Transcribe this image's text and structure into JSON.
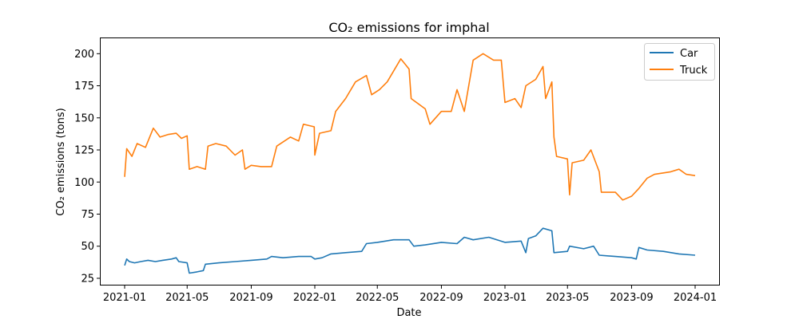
{
  "chart_data": {
    "type": "line",
    "title": "CO₂ emissions for imphal",
    "xlabel": "Date",
    "ylabel": "CO₂ emissions (tons)",
    "xlim": [
      "2020-11-16",
      "2024-02-16"
    ],
    "ylim": [
      20,
      212
    ],
    "x_ticks": [
      "2021-01",
      "2021-05",
      "2021-09",
      "2022-01",
      "2022-05",
      "2022-09",
      "2023-01",
      "2023-05",
      "2023-09",
      "2024-01"
    ],
    "y_ticks": [
      25,
      50,
      75,
      100,
      125,
      150,
      175,
      200
    ],
    "grid": false,
    "legend": {
      "placement": "top-right",
      "entries": [
        "Car",
        "Truck"
      ]
    },
    "series": [
      {
        "name": "Car",
        "color": "#1f77b4",
        "points": [
          [
            "2021-01-01",
            35
          ],
          [
            "2021-01-05",
            40
          ],
          [
            "2021-01-10",
            38
          ],
          [
            "2021-01-20",
            37
          ],
          [
            "2021-02-01",
            38
          ],
          [
            "2021-02-15",
            39
          ],
          [
            "2021-03-01",
            38
          ],
          [
            "2021-03-15",
            39
          ],
          [
            "2021-04-01",
            40
          ],
          [
            "2021-04-10",
            41
          ],
          [
            "2021-04-15",
            38
          ],
          [
            "2021-05-01",
            37
          ],
          [
            "2021-05-05",
            29
          ],
          [
            "2021-05-20",
            30
          ],
          [
            "2021-06-01",
            31
          ],
          [
            "2021-06-05",
            36
          ],
          [
            "2021-07-01",
            37
          ],
          [
            "2021-08-01",
            38
          ],
          [
            "2021-09-01",
            39
          ],
          [
            "2021-10-01",
            40
          ],
          [
            "2021-10-10",
            42
          ],
          [
            "2021-11-01",
            41
          ],
          [
            "2021-12-01",
            42
          ],
          [
            "2021-12-25",
            42
          ],
          [
            "2022-01-01",
            40
          ],
          [
            "2022-01-15",
            41
          ],
          [
            "2022-02-01",
            44
          ],
          [
            "2022-03-01",
            45
          ],
          [
            "2022-04-01",
            46
          ],
          [
            "2022-04-10",
            52
          ],
          [
            "2022-05-01",
            53
          ],
          [
            "2022-06-01",
            55
          ],
          [
            "2022-07-01",
            55
          ],
          [
            "2022-07-10",
            50
          ],
          [
            "2022-08-01",
            51
          ],
          [
            "2022-09-01",
            53
          ],
          [
            "2022-10-01",
            52
          ],
          [
            "2022-10-15",
            57
          ],
          [
            "2022-11-01",
            55
          ],
          [
            "2022-12-01",
            57
          ],
          [
            "2023-01-01",
            53
          ],
          [
            "2023-02-01",
            54
          ],
          [
            "2023-02-10",
            45
          ],
          [
            "2023-02-15",
            56
          ],
          [
            "2023-03-01",
            58
          ],
          [
            "2023-03-15",
            64
          ],
          [
            "2023-04-01",
            62
          ],
          [
            "2023-04-05",
            45
          ],
          [
            "2023-05-01",
            46
          ],
          [
            "2023-05-05",
            50
          ],
          [
            "2023-06-01",
            48
          ],
          [
            "2023-06-20",
            50
          ],
          [
            "2023-07-01",
            43
          ],
          [
            "2023-08-01",
            42
          ],
          [
            "2023-09-01",
            41
          ],
          [
            "2023-09-10",
            40
          ],
          [
            "2023-09-15",
            49
          ],
          [
            "2023-10-01",
            47
          ],
          [
            "2023-11-01",
            46
          ],
          [
            "2023-12-01",
            44
          ],
          [
            "2024-01-01",
            43
          ]
        ]
      },
      {
        "name": "Truck",
        "color": "#ff7f0e",
        "points": [
          [
            "2021-01-01",
            104
          ],
          [
            "2021-01-05",
            126
          ],
          [
            "2021-01-15",
            120
          ],
          [
            "2021-01-25",
            130
          ],
          [
            "2021-02-10",
            127
          ],
          [
            "2021-02-25",
            142
          ],
          [
            "2021-03-10",
            135
          ],
          [
            "2021-03-25",
            137
          ],
          [
            "2021-04-10",
            138
          ],
          [
            "2021-04-20",
            134
          ],
          [
            "2021-05-01",
            136
          ],
          [
            "2021-05-05",
            110
          ],
          [
            "2021-05-20",
            112
          ],
          [
            "2021-06-05",
            110
          ],
          [
            "2021-06-10",
            128
          ],
          [
            "2021-06-25",
            130
          ],
          [
            "2021-07-15",
            128
          ],
          [
            "2021-08-01",
            121
          ],
          [
            "2021-08-15",
            125
          ],
          [
            "2021-08-20",
            110
          ],
          [
            "2021-09-01",
            113
          ],
          [
            "2021-09-20",
            112
          ],
          [
            "2021-10-10",
            112
          ],
          [
            "2021-10-20",
            128
          ],
          [
            "2021-11-15",
            135
          ],
          [
            "2021-12-01",
            132
          ],
          [
            "2021-12-10",
            145
          ],
          [
            "2021-12-31",
            143
          ],
          [
            "2022-01-01",
            121
          ],
          [
            "2022-01-10",
            138
          ],
          [
            "2022-02-01",
            140
          ],
          [
            "2022-02-10",
            155
          ],
          [
            "2022-03-01",
            165
          ],
          [
            "2022-03-20",
            178
          ],
          [
            "2022-04-10",
            183
          ],
          [
            "2022-04-20",
            168
          ],
          [
            "2022-05-05",
            172
          ],
          [
            "2022-05-20",
            178
          ],
          [
            "2022-06-15",
            196
          ],
          [
            "2022-07-01",
            188
          ],
          [
            "2022-07-05",
            165
          ],
          [
            "2022-08-01",
            157
          ],
          [
            "2022-08-10",
            145
          ],
          [
            "2022-09-01",
            155
          ],
          [
            "2022-09-20",
            155
          ],
          [
            "2022-10-01",
            172
          ],
          [
            "2022-10-15",
            155
          ],
          [
            "2022-11-01",
            195
          ],
          [
            "2022-11-20",
            200
          ],
          [
            "2022-12-10",
            195
          ],
          [
            "2022-12-25",
            195
          ],
          [
            "2023-01-01",
            162
          ],
          [
            "2023-01-20",
            165
          ],
          [
            "2023-02-01",
            158
          ],
          [
            "2023-02-10",
            175
          ],
          [
            "2023-03-01",
            180
          ],
          [
            "2023-03-15",
            190
          ],
          [
            "2023-03-20",
            165
          ],
          [
            "2023-04-01",
            178
          ],
          [
            "2023-04-05",
            135
          ],
          [
            "2023-04-10",
            120
          ],
          [
            "2023-05-01",
            118
          ],
          [
            "2023-05-05",
            90
          ],
          [
            "2023-05-10",
            115
          ],
          [
            "2023-06-01",
            117
          ],
          [
            "2023-06-15",
            125
          ],
          [
            "2023-07-01",
            108
          ],
          [
            "2023-07-05",
            92
          ],
          [
            "2023-08-01",
            92
          ],
          [
            "2023-08-15",
            86
          ],
          [
            "2023-09-01",
            89
          ],
          [
            "2023-09-15",
            95
          ],
          [
            "2023-10-01",
            103
          ],
          [
            "2023-10-15",
            106
          ],
          [
            "2023-11-15",
            108
          ],
          [
            "2023-12-01",
            110
          ],
          [
            "2023-12-15",
            106
          ],
          [
            "2024-01-01",
            105
          ]
        ]
      }
    ]
  }
}
